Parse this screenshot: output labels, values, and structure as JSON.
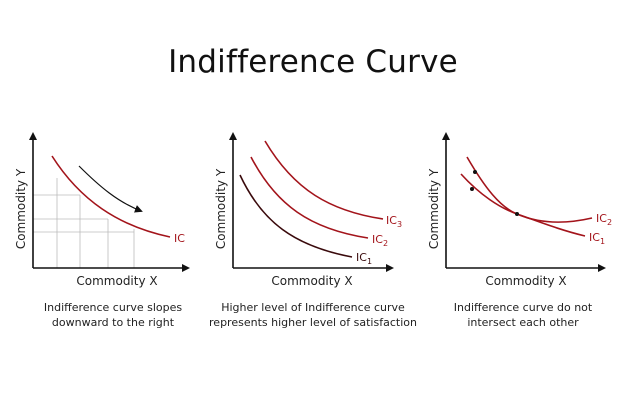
{
  "title": "Indifference Curve",
  "colors": {
    "axis": "#111111",
    "curve_red": "#a3141b",
    "curve_dark": "#3a0a0c",
    "grid": "#bbbbbb"
  },
  "panels": [
    {
      "xlabel": "Commodity X",
      "ylabel": "Commodity Y",
      "curves": [
        {
          "label": "IC",
          "color": "red"
        }
      ],
      "caption": [
        "Indifference curve slopes",
        "downward to the right"
      ]
    },
    {
      "xlabel": "Commodity X",
      "ylabel": "Commodity Y",
      "curves": [
        {
          "label_base": "IC",
          "label_sub": "3",
          "color": "red"
        },
        {
          "label_base": "IC",
          "label_sub": "2",
          "color": "red"
        },
        {
          "label_base": "IC",
          "label_sub": "1",
          "color": "dark"
        }
      ],
      "caption": [
        "Higher level of Indifference curve",
        "represents higher level of satisfaction"
      ]
    },
    {
      "xlabel": "Commodity X",
      "ylabel": "Commodity Y",
      "curves": [
        {
          "label_base": "IC",
          "label_sub": "2",
          "color": "red"
        },
        {
          "label_base": "IC",
          "label_sub": "1",
          "color": "red"
        }
      ],
      "caption": [
        "Indifference curve do not",
        "intersect each other"
      ]
    }
  ]
}
